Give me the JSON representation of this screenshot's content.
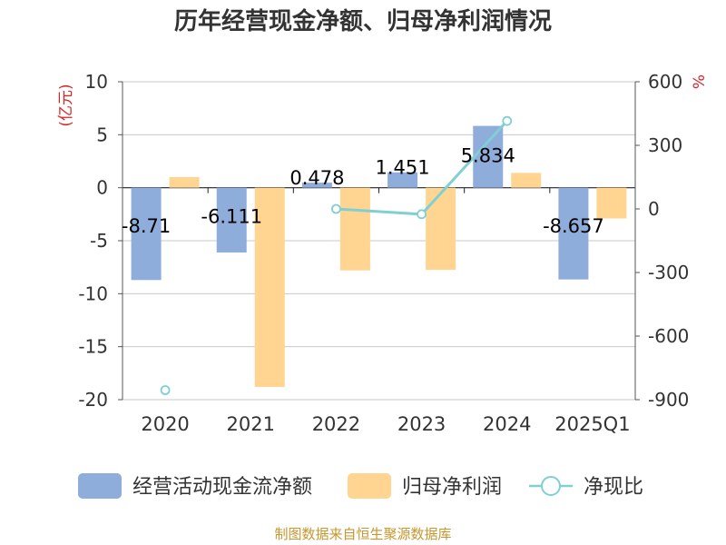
{
  "title": "历年经营现金净额、归母净利润情况",
  "source": "制图数据来自恒生聚源数据库",
  "colors": {
    "ocf": "#8eaddb",
    "np": "#ffd591",
    "ratio": "#7fcfd5",
    "label": "#000000",
    "unit": "#d62728",
    "axis": "#555555",
    "grid": "#c8c8c8",
    "source": "#c8962e",
    "title": "#333333"
  },
  "chart_data": {
    "type": "bar",
    "title": "历年经营现金净额、归母净利润情况",
    "categories": [
      "2020",
      "2021",
      "2022",
      "2023",
      "2024",
      "2025Q1"
    ],
    "left_axis": {
      "unit": "(亿元)",
      "range": [
        -20,
        10
      ],
      "ticks": [
        "10",
        "5",
        "0",
        "-5",
        "-10",
        "-15",
        "-20"
      ],
      "tick_values": [
        10,
        5,
        0,
        -5,
        -10,
        -15,
        -20
      ]
    },
    "right_axis": {
      "unit": "%",
      "range": [
        -900,
        600
      ],
      "ticks": [
        "600",
        "300",
        "0",
        "-300",
        "-600",
        "-900"
      ],
      "tick_values": [
        600,
        300,
        0,
        -300,
        -600,
        -900
      ]
    },
    "series": [
      {
        "name": "经营活动现金流净额",
        "type": "bar",
        "axis": "left",
        "values": [
          -8.71,
          -6.111,
          0.478,
          1.451,
          5.834,
          -8.657
        ],
        "labels": [
          "-8.71",
          "-6.111",
          "0.478",
          "1.451",
          "5.834",
          "-8.657"
        ]
      },
      {
        "name": "归母净利润",
        "type": "bar",
        "axis": "left",
        "values": [
          1.0,
          -18.8,
          -7.8,
          -7.75,
          1.4,
          -2.9
        ]
      },
      {
        "name": "净现比",
        "type": "line",
        "axis": "right",
        "values": [
          -855,
          null,
          0,
          -25,
          415,
          null
        ]
      }
    ],
    "grid": true,
    "legend_position": "bottom"
  },
  "legend": [
    {
      "label": "经营活动现金流净额",
      "marker": "bar",
      "color_key": "ocf"
    },
    {
      "label": "归母净利润",
      "marker": "bar",
      "color_key": "np"
    },
    {
      "label": "净现比",
      "marker": "line",
      "color_key": "ratio"
    }
  ]
}
